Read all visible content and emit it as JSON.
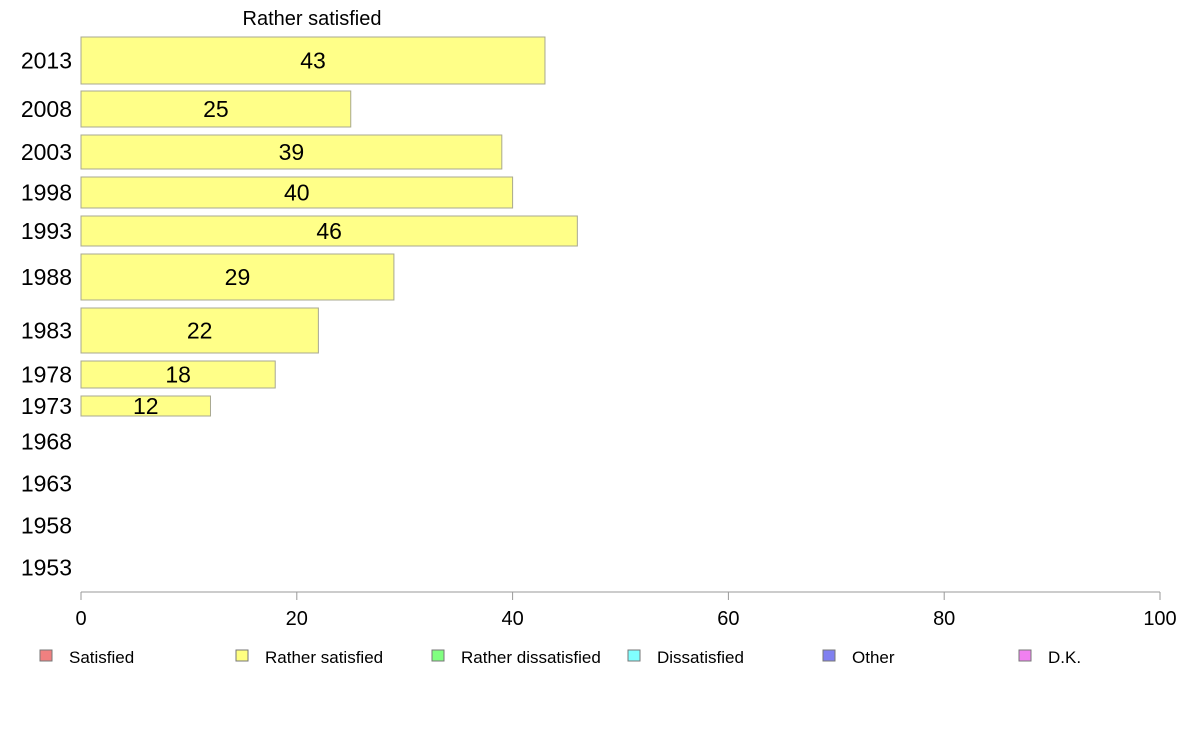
{
  "chart_data": {
    "type": "bar",
    "orientation": "horizontal",
    "title": "Rather satisfied",
    "categories": [
      "2013",
      "2008",
      "2003",
      "1998",
      "1993",
      "1988",
      "1983",
      "1978",
      "1973",
      "1968",
      "1963",
      "1958",
      "1953"
    ],
    "series": [
      {
        "name": "Rather satisfied",
        "color": "#ffff88",
        "values": [
          43,
          25,
          39,
          40,
          46,
          29,
          22,
          18,
          12,
          null,
          null,
          null,
          null
        ]
      }
    ],
    "xlim": [
      0,
      100
    ],
    "xticks": [
      "0",
      "20",
      "40",
      "60",
      "80",
      "100"
    ],
    "grid": false,
    "legend": {
      "placement": "bottom",
      "items": [
        {
          "label": "Satisfied",
          "color": "#f08080"
        },
        {
          "label": "Rather satisfied",
          "color": "#ffff80"
        },
        {
          "label": "Rather dissatisfied",
          "color": "#80ff80"
        },
        {
          "label": "Dissatisfied",
          "color": "#80ffff"
        },
        {
          "label": "Other",
          "color": "#8080f0"
        },
        {
          "label": "D.K.",
          "color": "#f080f0"
        }
      ]
    }
  }
}
